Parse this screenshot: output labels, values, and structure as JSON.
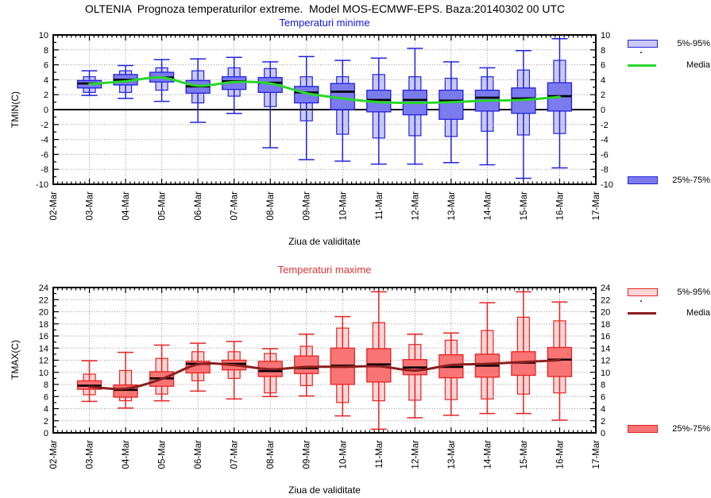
{
  "header": {
    "title": "OLTENIA  Prognoza temperaturilor extreme.  Model MOS-ECMWF-EPS. Baza:20140302 00 UTC"
  },
  "chart_data": [
    {
      "type": "boxplot",
      "title": "Temperaturi minime",
      "xlabel": "Ziua de validitate",
      "ylabel": "TMIN(C)",
      "ylim": [
        -10,
        10
      ],
      "ytick_step": 2,
      "grid": true,
      "zero_line": true,
      "legend_position": "right",
      "x_axis_dates": [
        "02-Mar",
        "03-Mar",
        "04-Mar",
        "05-Mar",
        "06-Mar",
        "07-Mar",
        "08-Mar",
        "09-Mar",
        "10-Mar",
        "11-Mar",
        "12-Mar",
        "13-Mar",
        "14-Mar",
        "15-Mar",
        "16-Mar",
        "17-Mar"
      ],
      "categories": [
        "03-Mar",
        "04-Mar",
        "05-Mar",
        "06-Mar",
        "07-Mar",
        "08-Mar",
        "09-Mar",
        "10-Mar",
        "11-Mar",
        "12-Mar",
        "13-Mar",
        "14-Mar",
        "15-Mar",
        "16-Mar"
      ],
      "series": {
        "min": [
          1.9,
          1.5,
          1.1,
          -1.7,
          -0.5,
          -5.1,
          -6.7,
          -6.9,
          -7.3,
          -7.3,
          -7.1,
          -7.4,
          -9.2,
          -7.8
        ],
        "p5": [
          2.3,
          2.3,
          2.6,
          0.9,
          1.8,
          0.4,
          -1.5,
          -3.3,
          -3.8,
          -3.5,
          -3.6,
          -2.9,
          -3.4,
          -3.2
        ],
        "q1": [
          2.9,
          3.3,
          3.7,
          2.2,
          2.7,
          2.3,
          0.9,
          0.0,
          -0.3,
          -0.7,
          -1.3,
          -0.2,
          -0.5,
          -0.2
        ],
        "median": [
          3.5,
          4.0,
          4.3,
          3.1,
          3.8,
          3.6,
          2.3,
          2.4,
          1.3,
          1.3,
          1.2,
          1.6,
          1.5,
          1.8
        ],
        "q3": [
          3.9,
          4.7,
          5.0,
          3.9,
          4.4,
          4.3,
          3.1,
          3.5,
          2.6,
          2.6,
          2.6,
          2.6,
          2.9,
          3.6
        ],
        "p95": [
          4.4,
          5.2,
          5.6,
          5.2,
          5.6,
          5.5,
          4.4,
          4.4,
          4.7,
          4.4,
          4.2,
          4.4,
          5.3,
          6.6
        ],
        "max": [
          5.2,
          5.9,
          6.7,
          6.8,
          7.0,
          6.4,
          7.1,
          6.6,
          6.9,
          8.2,
          6.4,
          5.6,
          7.9,
          9.5
        ],
        "mean": [
          3.4,
          3.8,
          4.3,
          3.2,
          3.7,
          3.5,
          2.2,
          1.5,
          1.0,
          0.9,
          1.0,
          1.2,
          1.3,
          1.7
        ]
      },
      "legend": [
        {
          "label": "5%-95%",
          "swatch": "box-light"
        },
        {
          "label": "Media",
          "swatch": "line"
        },
        {
          "label": "25%-75%",
          "swatch": "box-dark"
        }
      ],
      "colors": {
        "title": "#1515d0",
        "box_border": "#2222dd",
        "box_light": "#c9c9f5",
        "box_dark": "#7b7bed",
        "mean_line": "#28d828",
        "median_line": "#000000",
        "grid": "#909090"
      }
    },
    {
      "type": "boxplot",
      "title": "Temperaturi maxime",
      "xlabel": "Ziua de validitate",
      "ylabel": "TMAX(C)",
      "ylim": [
        0,
        24
      ],
      "ytick_step": 2,
      "grid": true,
      "zero_line": false,
      "legend_position": "right",
      "x_axis_dates": [
        "02-Mar",
        "03-Mar",
        "04-Mar",
        "05-Mar",
        "06-Mar",
        "07-Mar",
        "08-Mar",
        "09-Mar",
        "10-Mar",
        "11-Mar",
        "12-Mar",
        "13-Mar",
        "14-Mar",
        "15-Mar",
        "16-Mar",
        "17-Mar"
      ],
      "categories": [
        "03-Mar",
        "04-Mar",
        "05-Mar",
        "06-Mar",
        "07-Mar",
        "08-Mar",
        "09-Mar",
        "10-Mar",
        "11-Mar",
        "12-Mar",
        "13-Mar",
        "14-Mar",
        "15-Mar",
        "16-Mar"
      ],
      "series": {
        "min": [
          5.2,
          4.1,
          5.3,
          6.9,
          5.6,
          6.0,
          6.1,
          2.8,
          0.6,
          2.5,
          2.9,
          3.2,
          3.2,
          2.1
        ],
        "p5": [
          6.3,
          5.3,
          6.4,
          8.6,
          9.0,
          6.6,
          7.8,
          5.0,
          5.3,
          5.4,
          5.5,
          5.6,
          6.4,
          6.6
        ],
        "q1": [
          7.2,
          5.9,
          7.7,
          9.9,
          10.4,
          9.3,
          9.8,
          8.0,
          8.4,
          9.6,
          9.1,
          9.2,
          9.5,
          9.3
        ],
        "median": [
          7.8,
          7.1,
          9.0,
          11.4,
          11.4,
          10.2,
          10.7,
          11.1,
          11.3,
          10.8,
          10.9,
          11.1,
          11.6,
          12.1
        ],
        "q3": [
          8.6,
          7.9,
          10.1,
          11.8,
          12.0,
          11.8,
          12.7,
          14.0,
          13.9,
          12.1,
          12.9,
          13.0,
          13.4,
          14.1
        ],
        "p95": [
          9.7,
          10.3,
          12.3,
          13.4,
          13.4,
          13.1,
          14.3,
          17.3,
          18.2,
          14.6,
          15.3,
          16.9,
          19.1,
          18.5
        ],
        "max": [
          11.9,
          13.3,
          14.5,
          14.8,
          15.1,
          13.9,
          16.3,
          19.2,
          23.3,
          16.3,
          16.5,
          21.5,
          23.3,
          21.6
        ],
        "mean": [
          7.6,
          7.3,
          8.9,
          11.3,
          11.2,
          10.5,
          10.9,
          10.9,
          11.0,
          10.3,
          11.2,
          11.4,
          11.7,
          12.0
        ]
      },
      "legend": [
        {
          "label": "5%-95%",
          "swatch": "box-light"
        },
        {
          "label": "Media",
          "swatch": "line"
        },
        {
          "label": "25%-75%",
          "swatch": "box-dark"
        }
      ],
      "colors": {
        "title": "#e03333",
        "box_border": "#e62222",
        "box_light": "#fbd6d6",
        "box_dark": "#f97474",
        "mean_line": "#8b1f1f",
        "median_line": "#000000",
        "grid": "#909090"
      }
    }
  ]
}
